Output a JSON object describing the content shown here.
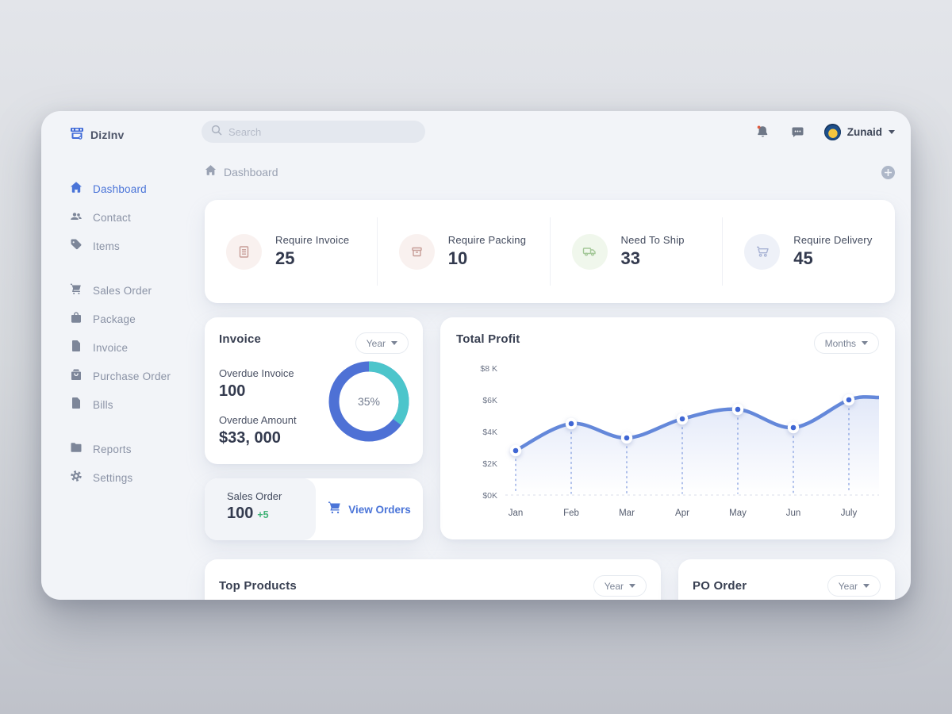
{
  "brand": {
    "name": "DizInv",
    "icon": "storefront-icon",
    "color": "#3f6ad8"
  },
  "search": {
    "placeholder": "Search",
    "icon": "search-icon"
  },
  "topbar": {
    "notifications": {
      "icon": "bell-icon",
      "has_unread_dot": true,
      "dot_color": "#e05b3f"
    },
    "messages": {
      "icon": "chat-icon"
    },
    "user": {
      "name": "Zunaid",
      "avatar": "avatar",
      "caret": "chevron-down-icon"
    }
  },
  "breadcrumb": {
    "icon": "home-icon",
    "label": "Dashboard",
    "add_button_icon": "plus-icon"
  },
  "sidebar": {
    "items": [
      {
        "label": "Dashboard",
        "icon": "home-icon",
        "active": true
      },
      {
        "label": "Contact",
        "icon": "people-icon",
        "active": false
      },
      {
        "label": "Items",
        "icon": "tag-icon",
        "active": false
      },
      {
        "label": "Sales Order",
        "icon": "cart-icon",
        "active": false
      },
      {
        "label": "Package",
        "icon": "bag-icon",
        "active": false
      },
      {
        "label": "Invoice",
        "icon": "file-icon",
        "active": false
      },
      {
        "label": "Purchase Order",
        "icon": "purchase-bag-icon",
        "active": false
      },
      {
        "label": "Bills",
        "icon": "file-icon",
        "active": false
      },
      {
        "label": "Reports",
        "icon": "folder-icon",
        "active": false
      },
      {
        "label": "Settings",
        "icon": "gear-icon",
        "active": false
      }
    ]
  },
  "stats": {
    "items": [
      {
        "label": "Require Invoice",
        "value": "25",
        "icon": "document-icon",
        "circle_color": "#f9f1ef",
        "icon_color": "#c79d97"
      },
      {
        "label": "Require Packing",
        "value": "10",
        "icon": "package-box-icon",
        "circle_color": "#f9f1ef",
        "icon_color": "#c79d97"
      },
      {
        "label": "Need To Ship",
        "value": "33",
        "icon": "truck-icon",
        "circle_color": "#f0f7ec",
        "icon_color": "#a4c898"
      },
      {
        "label": "Require Delivery",
        "value": "45",
        "icon": "cart-icon",
        "circle_color": "#eef1f8",
        "icon_color": "#a7b2d4"
      }
    ]
  },
  "invoice_card": {
    "title": "Invoice",
    "range_label": "Year",
    "overdue_invoice_label": "Overdue Invoice",
    "overdue_invoice_value": "100",
    "overdue_amount_label": "Overdue Amount",
    "overdue_amount_value": "$33, 000",
    "donut": {
      "percent": 35,
      "percent_label": "35%",
      "primary_color": "#4e71d5",
      "secondary_color": "#4cc5cb"
    }
  },
  "profit_card": {
    "title": "Total Profit",
    "range_label": "Months"
  },
  "chart_data": {
    "type": "line",
    "title": "Total Profit",
    "x": [
      "Jan",
      "Feb",
      "Mar",
      "Apr",
      "May",
      "Jun",
      "July"
    ],
    "series": [
      {
        "name": "Total Profit ($K)",
        "values": [
          2.8,
          4.5,
          3.6,
          4.8,
          5.4,
          4.25,
          6.0
        ]
      }
    ],
    "y_ticks": [
      {
        "value": 0,
        "label": "$0K"
      },
      {
        "value": 2,
        "label": "$2K"
      },
      {
        "value": 4,
        "label": "$4K"
      },
      {
        "value": 6,
        "label": "$6K"
      },
      {
        "value": 8,
        "label": "$8 K"
      }
    ],
    "ylim": [
      0,
      8
    ],
    "grid": "dashed vertical line under each point, dashed baseline at 0",
    "legend_position": "none",
    "line_color": "#6488da",
    "point_color": "#3f66d4"
  },
  "sales_order_card": {
    "title": "Sales Order",
    "value": "100",
    "delta": "+5",
    "delta_color": "#41b377",
    "action_icon": "cart-icon",
    "action_label": "View Orders"
  },
  "top_products_card": {
    "title": "Top Products",
    "range_label": "Year"
  },
  "po_order_card": {
    "title": "PO Order",
    "range_label": "Year"
  }
}
